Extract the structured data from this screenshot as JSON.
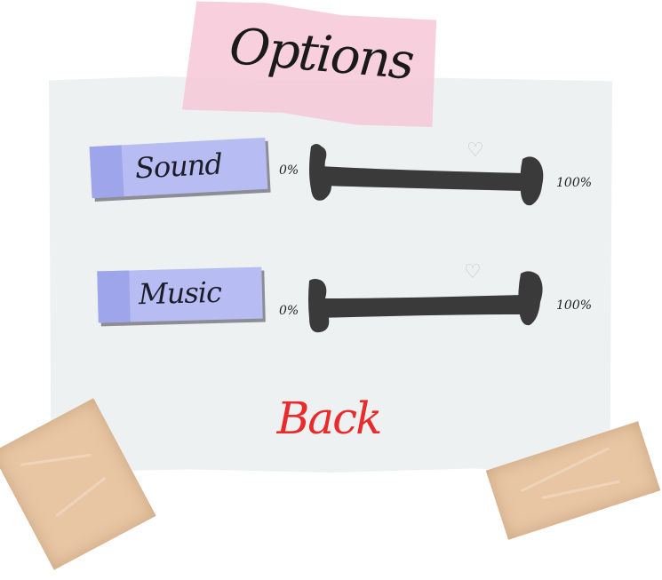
{
  "title": "Options",
  "options": [
    {
      "label": "Sound",
      "min_label": "0%",
      "max_label": "100%",
      "value_percent": 100
    },
    {
      "label": "Music",
      "min_label": "0%",
      "max_label": "100%",
      "value_percent": 100
    }
  ],
  "back_label": "Back",
  "colors": {
    "paper": "#eef1f1",
    "title_tape": "#f6c8d8",
    "button": "#b7bdf2",
    "button_tab": "#9fa5ea",
    "slider_track": "#3a3a3a",
    "back_text": "#ea2b2b",
    "masking_tape": "#e8c6a4"
  },
  "icons": {
    "slider_knob": "heart-outline-icon"
  }
}
